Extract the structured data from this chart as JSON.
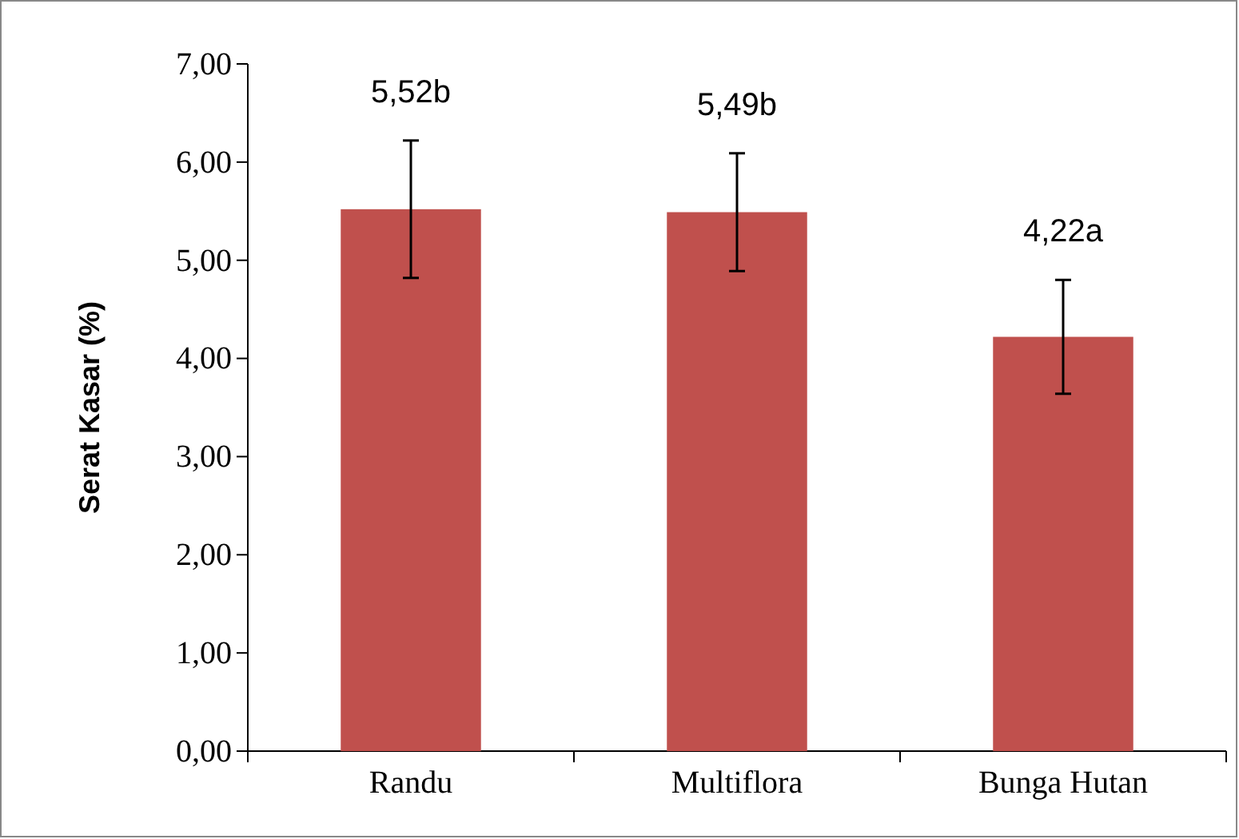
{
  "chart_data": {
    "type": "bar",
    "ylabel": "Serat Kasar (%)",
    "categories": [
      "Randu",
      "Multiflora",
      "Bunga Hutan"
    ],
    "values": [
      5.52,
      5.49,
      4.22
    ],
    "value_labels": [
      "5,52b",
      "5,49b",
      "4,22a"
    ],
    "errors": [
      0.7,
      0.6,
      0.58
    ],
    "color": "#c0504d",
    "ylim": [
      0,
      7
    ],
    "yticks": [
      {
        "value": 0,
        "label": "0,00"
      },
      {
        "value": 1,
        "label": "1,00"
      },
      {
        "value": 2,
        "label": "2,00"
      },
      {
        "value": 3,
        "label": "3,00"
      },
      {
        "value": 4,
        "label": "4,00"
      },
      {
        "value": 5,
        "label": "5,00"
      },
      {
        "value": 6,
        "label": "6,00"
      },
      {
        "value": 7,
        "label": "7,00"
      }
    ],
    "grid": false
  }
}
